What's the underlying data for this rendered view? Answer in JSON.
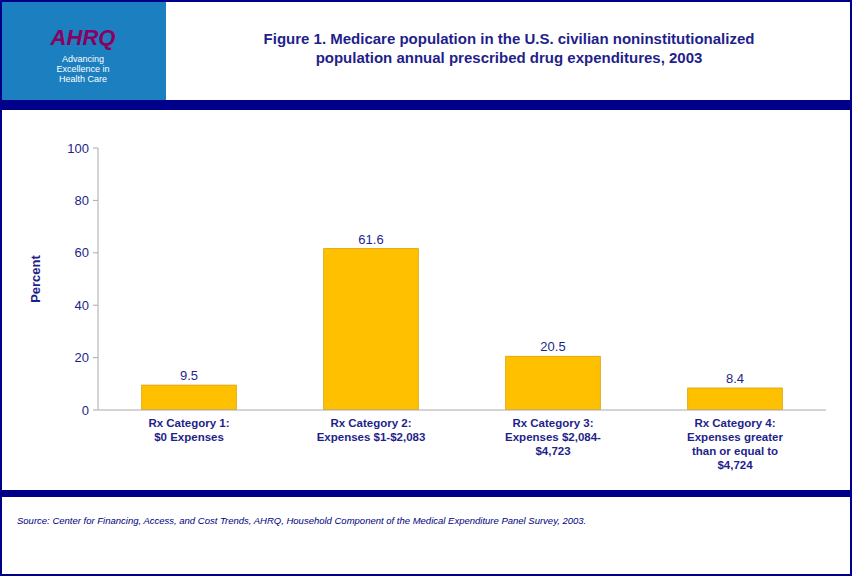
{
  "chart_data": {
    "type": "bar",
    "title": "Figure 1. Medicare population in the U.S. civilian noninstitutionalized\npopulation annual prescribed drug expenditures, 2003",
    "categories": [
      "Rx Category 1:\n$0 Expenses",
      "Rx Category 2:\nExpenses $1-$2,083",
      "Rx Category 3:\nExpenses $2,084-\n$4,723",
      "Rx Category 4:\nExpenses greater\nthan or equal to\n$4,724"
    ],
    "values": [
      9.5,
      61.6,
      20.5,
      8.4
    ],
    "color": "#FFC000",
    "ylabel": "Percent",
    "ylim": [
      0,
      100
    ],
    "yticks": [
      0,
      20,
      40,
      60,
      80,
      100
    ],
    "grid": false,
    "data_labels": true,
    "annotations": [
      "AHRQ",
      "Advancing\nExcellence in\nHealth Care"
    ],
    "source": "Source: Center for Financing, Access, and Cost Trends, AHRQ, Household Component of the Medical Expenditure Panel Survey, 2003."
  }
}
